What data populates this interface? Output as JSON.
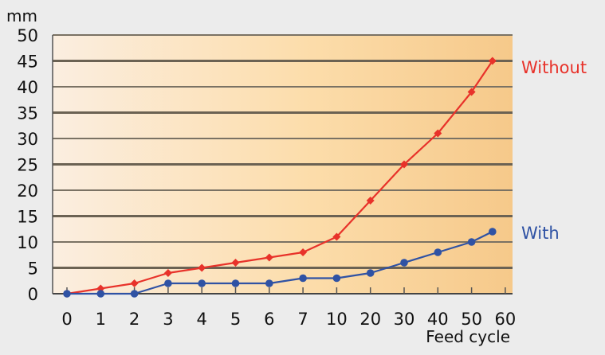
{
  "chart_data": {
    "type": "line",
    "title": "",
    "ylabel": "mm",
    "xlabel": "Feed cycle",
    "categories": [
      "0",
      "1",
      "2",
      "3",
      "4",
      "5",
      "6",
      "7",
      "10",
      "20",
      "30",
      "40",
      "50",
      "60"
    ],
    "y_ticks": [
      0,
      5,
      10,
      15,
      20,
      25,
      30,
      35,
      40,
      45,
      50
    ],
    "ylim": [
      0,
      50
    ],
    "grid": true,
    "series": [
      {
        "name": "Without",
        "color": "#e8322a",
        "marker": "diamond",
        "x": [
          "0",
          "1",
          "2",
          "3",
          "4",
          "5",
          "6",
          "7",
          "10",
          "20",
          "30",
          "40",
          "50",
          "56"
        ],
        "values": [
          0,
          1,
          2,
          4,
          5,
          6,
          7,
          8,
          11,
          18,
          25,
          31,
          39,
          45
        ]
      },
      {
        "name": "With",
        "color": "#2f52a4",
        "marker": "circle",
        "x": [
          "0",
          "1",
          "2",
          "3",
          "4",
          "5",
          "6",
          "7",
          "10",
          "20",
          "30",
          "40",
          "50",
          "56"
        ],
        "values": [
          0,
          0,
          0,
          2,
          2,
          2,
          2,
          3,
          3,
          4,
          6,
          8,
          10,
          12
        ]
      }
    ]
  }
}
